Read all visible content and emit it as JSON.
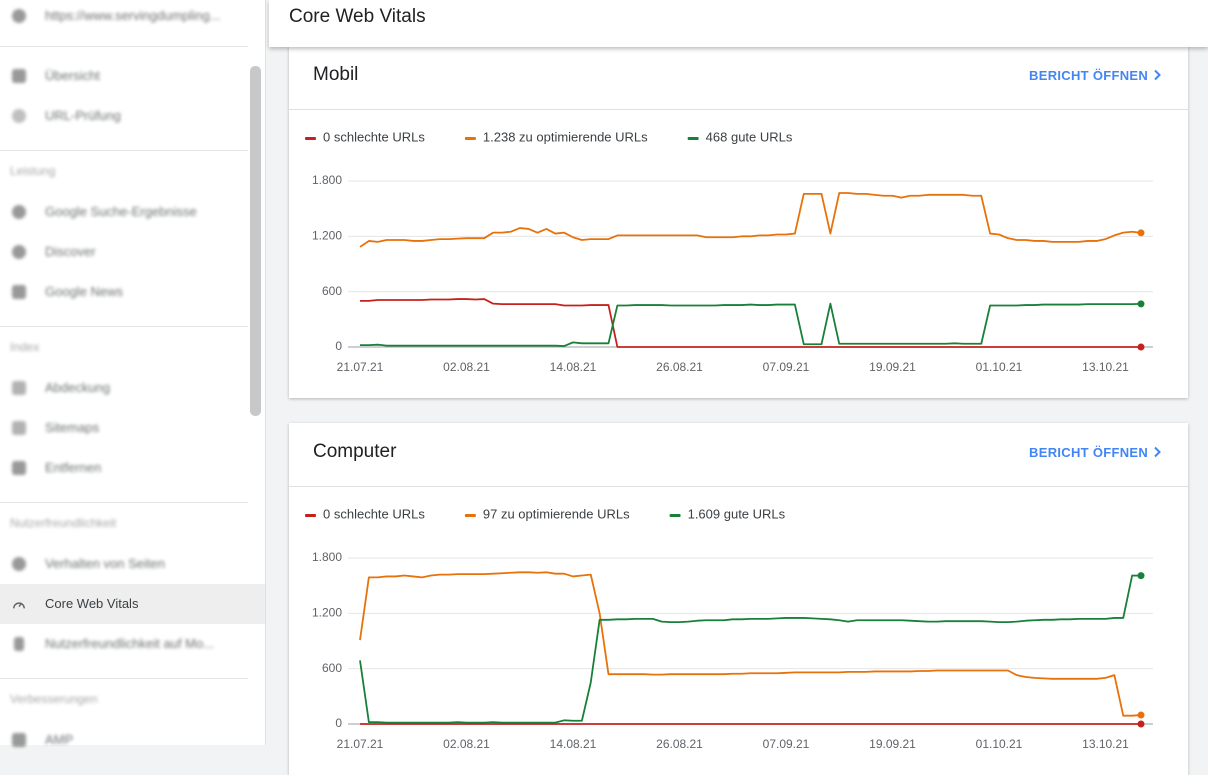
{
  "sidebar": {
    "property": "https://www.servingdumpling...",
    "items": [
      "Übersicht",
      "URL-Prüfung",
      "Leistung",
      "Google Suche-Ergebnisse",
      "Discover",
      "Google News",
      "Index",
      "Abdeckung",
      "Sitemaps",
      "Entfernen",
      "Nutzerfreundlichkeit",
      "Verhalten von Seiten",
      "Core Web Vitals",
      "Nutzerfreundlichkeit auf Mo...",
      "Verbesserungen",
      "AMP"
    ]
  },
  "header": {
    "title": "Core Web Vitals"
  },
  "chart_data": [
    {
      "type": "line",
      "title": "Mobil",
      "link_text": "BERICHT ÖFFNEN",
      "categories": [
        "21.07.21",
        null,
        null,
        null,
        null,
        null,
        null,
        null,
        null,
        null,
        null,
        null,
        "02.08.21",
        null,
        null,
        null,
        null,
        null,
        null,
        null,
        null,
        null,
        null,
        null,
        "14.08.21",
        null,
        null,
        null,
        null,
        null,
        null,
        null,
        null,
        null,
        null,
        null,
        "26.08.21",
        null,
        null,
        null,
        null,
        null,
        null,
        null,
        null,
        null,
        null,
        null,
        "07.09.21",
        null,
        null,
        null,
        null,
        null,
        null,
        null,
        null,
        null,
        null,
        null,
        "19.09.21",
        null,
        null,
        null,
        null,
        null,
        null,
        null,
        null,
        null,
        null,
        null,
        "01.10.21",
        null,
        null,
        null,
        null,
        null,
        null,
        null,
        null,
        null,
        null,
        null,
        "13.10.21",
        null,
        null,
        null,
        null
      ],
      "ylim": [
        0,
        1800
      ],
      "yticks": [
        0,
        600,
        {
          "value": 1200,
          "label": "1.200"
        },
        {
          "value": 1800,
          "label": "1.800"
        }
      ],
      "grid": true,
      "series": [
        {
          "name": "0 schlechte URLs",
          "color": "#c5221f",
          "values": [
            500,
            500,
            510,
            510,
            510,
            510,
            510,
            510,
            515,
            515,
            515,
            520,
            520,
            515,
            520,
            470,
            465,
            465,
            465,
            465,
            465,
            465,
            465,
            450,
            450,
            450,
            455,
            455,
            455,
            0,
            0,
            0,
            0,
            0,
            0,
            0,
            0,
            0,
            0,
            0,
            0,
            0,
            0,
            0,
            0,
            0,
            0,
            0,
            0,
            0,
            0,
            0,
            0,
            0,
            0,
            0,
            0,
            0,
            0,
            0,
            0,
            0,
            0,
            0,
            0,
            0,
            0,
            0,
            0,
            0,
            0,
            0,
            0,
            0,
            0,
            0,
            0,
            0,
            0,
            0,
            0,
            0,
            0,
            0,
            0,
            0,
            0,
            0,
            0
          ]
        },
        {
          "name": "1.238 zu optimierende URLs",
          "color": "#e8710a",
          "values": [
            1085,
            1150,
            1140,
            1160,
            1160,
            1160,
            1150,
            1150,
            1160,
            1170,
            1170,
            1175,
            1180,
            1180,
            1180,
            1240,
            1240,
            1250,
            1290,
            1280,
            1240,
            1280,
            1230,
            1240,
            1190,
            1160,
            1170,
            1170,
            1170,
            1210,
            1210,
            1210,
            1210,
            1210,
            1210,
            1210,
            1210,
            1210,
            1210,
            1190,
            1190,
            1190,
            1190,
            1200,
            1200,
            1210,
            1210,
            1220,
            1220,
            1230,
            1660,
            1660,
            1660,
            1230,
            1670,
            1670,
            1660,
            1660,
            1650,
            1640,
            1640,
            1620,
            1640,
            1640,
            1650,
            1650,
            1650,
            1650,
            1650,
            1640,
            1640,
            1230,
            1220,
            1180,
            1160,
            1160,
            1150,
            1150,
            1140,
            1140,
            1140,
            1140,
            1150,
            1150,
            1170,
            1210,
            1240,
            1250,
            1238
          ]
        },
        {
          "name": "468 gute URLs",
          "color": "#188038",
          "values": [
            20,
            20,
            25,
            15,
            15,
            15,
            15,
            15,
            15,
            15,
            15,
            15,
            15,
            15,
            15,
            15,
            15,
            15,
            15,
            15,
            15,
            15,
            15,
            10,
            50,
            40,
            40,
            40,
            40,
            450,
            450,
            455,
            455,
            455,
            455,
            450,
            450,
            450,
            450,
            450,
            450,
            455,
            455,
            455,
            460,
            455,
            455,
            460,
            460,
            460,
            30,
            30,
            30,
            470,
            35,
            35,
            35,
            35,
            35,
            35,
            35,
            35,
            35,
            35,
            35,
            35,
            35,
            40,
            35,
            35,
            35,
            450,
            450,
            450,
            450,
            455,
            455,
            460,
            460,
            460,
            460,
            460,
            465,
            465,
            465,
            465,
            465,
            465,
            468
          ]
        }
      ]
    },
    {
      "type": "line",
      "title": "Computer",
      "link_text": "BERICHT ÖFFNEN",
      "categories": [
        "21.07.21",
        null,
        null,
        null,
        null,
        null,
        null,
        null,
        null,
        null,
        null,
        null,
        "02.08.21",
        null,
        null,
        null,
        null,
        null,
        null,
        null,
        null,
        null,
        null,
        null,
        "14.08.21",
        null,
        null,
        null,
        null,
        null,
        null,
        null,
        null,
        null,
        null,
        null,
        "26.08.21",
        null,
        null,
        null,
        null,
        null,
        null,
        null,
        null,
        null,
        null,
        null,
        "07.09.21",
        null,
        null,
        null,
        null,
        null,
        null,
        null,
        null,
        null,
        null,
        null,
        "19.09.21",
        null,
        null,
        null,
        null,
        null,
        null,
        null,
        null,
        null,
        null,
        null,
        "01.10.21",
        null,
        null,
        null,
        null,
        null,
        null,
        null,
        null,
        null,
        null,
        null,
        "13.10.21",
        null,
        null,
        null,
        null
      ],
      "ylim": [
        0,
        1800
      ],
      "yticks": [
        0,
        600,
        {
          "value": 1200,
          "label": "1.200"
        },
        {
          "value": 1800,
          "label": "1.800"
        }
      ],
      "grid": true,
      "series": [
        {
          "name": "0 schlechte URLs",
          "color": "#c5221f",
          "values": [
            0,
            0,
            0,
            0,
            0,
            0,
            0,
            0,
            0,
            0,
            0,
            0,
            0,
            0,
            0,
            0,
            0,
            0,
            0,
            0,
            0,
            0,
            0,
            0,
            0,
            0,
            0,
            0,
            0,
            0,
            0,
            0,
            0,
            0,
            0,
            0,
            0,
            0,
            0,
            0,
            0,
            0,
            0,
            0,
            0,
            0,
            0,
            0,
            0,
            0,
            0,
            0,
            0,
            0,
            0,
            0,
            0,
            0,
            0,
            0,
            0,
            0,
            0,
            0,
            0,
            0,
            0,
            0,
            0,
            0,
            0,
            0,
            0,
            0,
            0,
            0,
            0,
            0,
            0,
            0,
            0,
            0,
            0,
            0,
            0,
            0,
            0,
            0,
            0
          ]
        },
        {
          "name": "97 zu optimierende URLs",
          "color": "#e8710a",
          "values": [
            910,
            1590,
            1590,
            1600,
            1600,
            1610,
            1600,
            1590,
            1610,
            1620,
            1620,
            1625,
            1625,
            1625,
            1625,
            1630,
            1635,
            1640,
            1645,
            1645,
            1640,
            1645,
            1630,
            1630,
            1600,
            1610,
            1620,
            1200,
            540,
            540,
            540,
            540,
            540,
            535,
            535,
            540,
            540,
            540,
            540,
            540,
            540,
            540,
            545,
            545,
            550,
            550,
            550,
            550,
            555,
            560,
            560,
            560,
            560,
            560,
            560,
            565,
            565,
            565,
            570,
            570,
            570,
            570,
            570,
            575,
            575,
            580,
            580,
            580,
            580,
            580,
            580,
            580,
            580,
            580,
            530,
            510,
            500,
            495,
            490,
            490,
            490,
            490,
            490,
            490,
            500,
            530,
            90,
            90,
            97
          ]
        },
        {
          "name": "1.609 gute URLs",
          "color": "#188038",
          "values": [
            690,
            20,
            20,
            15,
            15,
            15,
            15,
            15,
            15,
            15,
            15,
            20,
            15,
            15,
            15,
            20,
            15,
            15,
            15,
            15,
            15,
            15,
            15,
            40,
            35,
            35,
            450,
            1130,
            1130,
            1135,
            1135,
            1140,
            1140,
            1140,
            1110,
            1105,
            1105,
            1110,
            1120,
            1125,
            1125,
            1125,
            1135,
            1135,
            1140,
            1140,
            1140,
            1145,
            1150,
            1150,
            1150,
            1145,
            1140,
            1135,
            1125,
            1110,
            1125,
            1125,
            1125,
            1125,
            1125,
            1125,
            1120,
            1115,
            1110,
            1110,
            1115,
            1115,
            1115,
            1115,
            1115,
            1110,
            1105,
            1105,
            1110,
            1120,
            1125,
            1130,
            1130,
            1135,
            1135,
            1140,
            1140,
            1140,
            1140,
            1150,
            1150,
            1610,
            1609
          ]
        }
      ]
    }
  ]
}
